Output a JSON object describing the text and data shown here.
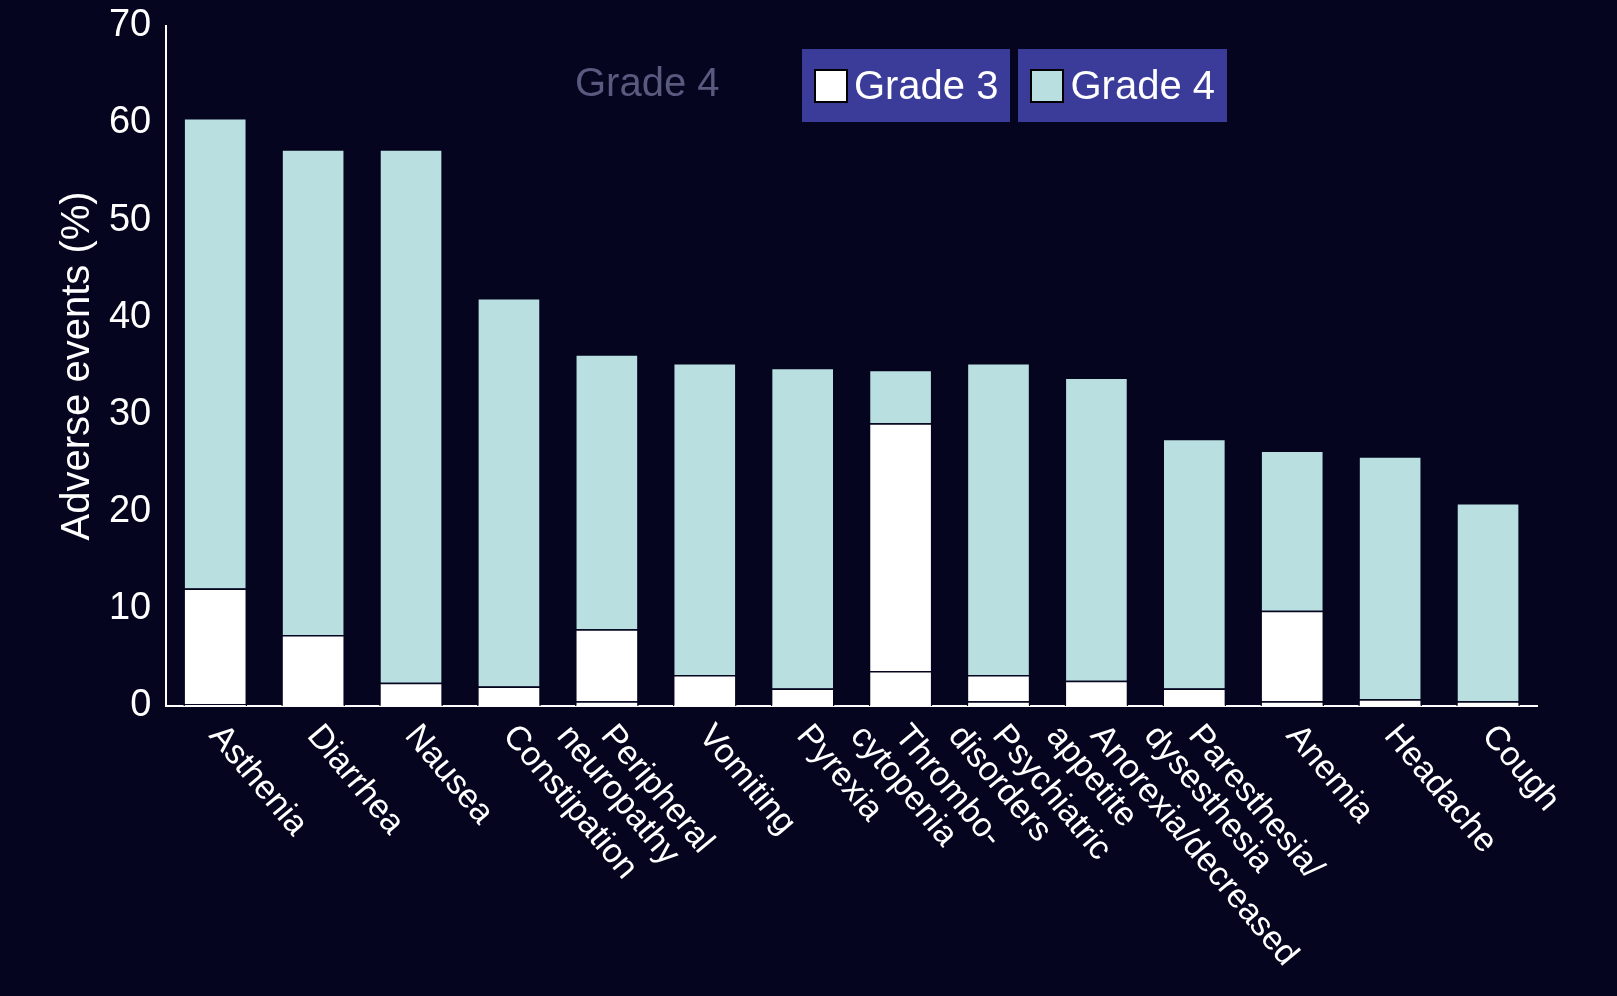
{
  "chart_data": {
    "type": "bar",
    "stacked": true,
    "ylabel": "Adverse events (%)",
    "categories": [
      "Asthenia",
      "Diarrhea",
      "Nausea",
      "Constipation",
      "Peripheral\nneuropathy",
      "Vomiting",
      "Pyrexia",
      "Thrombo-\ncytopenia",
      "Psychiatric\ndisorders",
      "Anorexia/decreased\nappetite",
      "Paresthesia/\ndysesthesia",
      "Anemia",
      "Headache",
      "Cough"
    ],
    "series": [
      {
        "color": "#ffffff",
        "values": [
          0.2,
          0,
          0,
          0,
          0.5,
          0,
          0,
          3.6,
          0.5,
          0,
          0,
          0.5,
          0,
          0
        ]
      },
      {
        "name": "Grade 3",
        "color": "#ffffff",
        "values": [
          11.9,
          7.3,
          2.4,
          2.0,
          7.4,
          3.2,
          1.8,
          25.5,
          2.7,
          2.6,
          1.8,
          9.3,
          0.7,
          0.5
        ]
      },
      {
        "name": "Grade 4",
        "color": "#b9dfe0",
        "values": [
          48.4,
          50.0,
          54.9,
          40.0,
          28.3,
          32.1,
          33.0,
          5.5,
          32.1,
          31.2,
          25.7,
          16.5,
          25.0,
          20.4
        ]
      }
    ],
    "ylim": [
      0,
      70
    ],
    "yticks": [
      0,
      10,
      20,
      30,
      40,
      50,
      60,
      70
    ],
    "grid": false,
    "legend": "top right",
    "annotations": [
      "Grade 4"
    ]
  }
}
